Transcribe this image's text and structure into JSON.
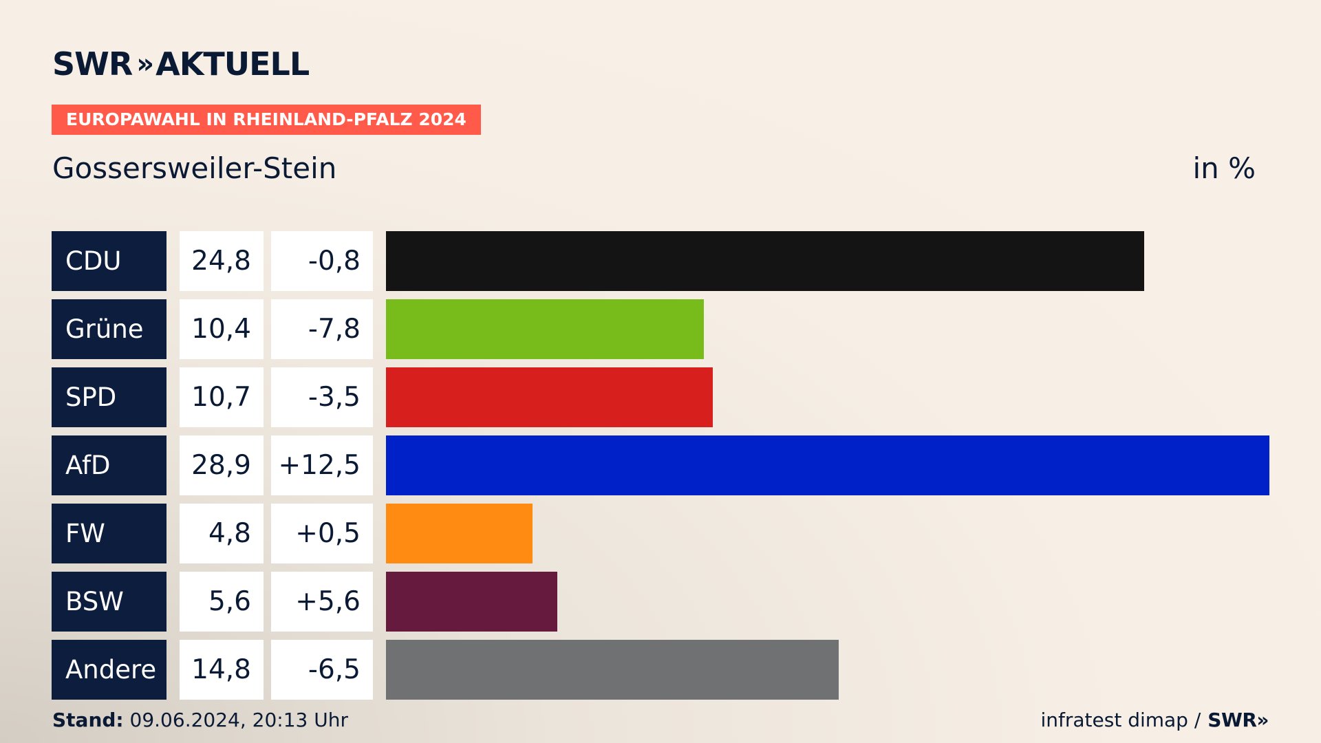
{
  "brand": {
    "logo_left": "SWR",
    "logo_chevrons": "»",
    "logo_right": "AKTUELL"
  },
  "banner": "EUROPAWAHL IN RHEINLAND-PFALZ 2024",
  "place": "Gossersweiler-Stein",
  "unit": "in %",
  "footer": {
    "stand_label": "Stand:",
    "stand_value": "09.06.2024, 20:13 Uhr",
    "source": "infratest dimap /",
    "source_logo": "SWR»"
  },
  "chart_data": {
    "type": "bar",
    "orientation": "horizontal",
    "categories": [
      "CDU",
      "Grüne",
      "SPD",
      "AfD",
      "FW",
      "BSW",
      "Andere"
    ],
    "values": [
      24.8,
      10.4,
      10.7,
      28.9,
      4.8,
      5.6,
      14.8
    ],
    "value_labels": [
      "24,8",
      "10,4",
      "10,7",
      "28,9",
      "4,8",
      "5,6",
      "14,8"
    ],
    "diff_labels": [
      "-0,8",
      "-7,8",
      "-3,5",
      "+12,5",
      "+0,5",
      "+5,6",
      "-6,5"
    ],
    "diffs": [
      -0.8,
      -7.8,
      -3.5,
      12.5,
      0.5,
      5.6,
      -6.5
    ],
    "colors": [
      "#141414",
      "#78bc1b",
      "#d71f1d",
      "#0021c8",
      "#ff8b13",
      "#661a3e",
      "#707173"
    ],
    "xlim": [
      0,
      28.9
    ]
  }
}
